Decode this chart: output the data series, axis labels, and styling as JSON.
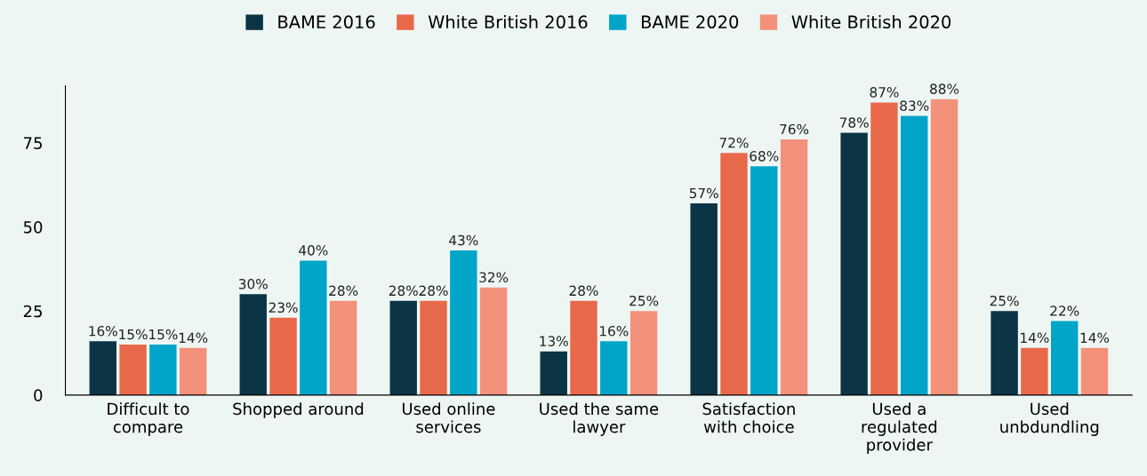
{
  "chart_data": {
    "type": "bar",
    "categories": [
      "Difficult to\ncompare",
      "Shopped around",
      "Used online\nservices",
      "Used the same\nlawyer",
      "Satisfaction\nwith choice",
      "Used a\nregulated\nprovider",
      "Used\nunbdundling"
    ],
    "series": [
      {
        "name": "BAME 2016",
        "color": "#0b3545",
        "values": [
          16,
          30,
          28,
          13,
          57,
          78,
          25
        ],
        "value_labels": [
          "16%",
          "30%",
          "28%",
          "13%",
          "57%",
          "78%",
          "25%"
        ]
      },
      {
        "name": "White British 2016",
        "color": "#e8694a",
        "values": [
          15,
          23,
          28,
          28,
          72,
          87,
          14
        ],
        "value_labels": [
          "15%",
          "23%",
          "28%",
          "28%",
          "72%",
          "87%",
          "14%"
        ]
      },
      {
        "name": "BAME 2020",
        "color": "#00a5c8",
        "values": [
          15,
          40,
          43,
          16,
          68,
          83,
          22
        ],
        "value_labels": [
          "15%",
          "40%",
          "43%",
          "16%",
          "68%",
          "83%",
          "22%"
        ]
      },
      {
        "name": "White British 2020",
        "color": "#f4917a",
        "values": [
          14,
          28,
          32,
          25,
          76,
          88,
          14
        ],
        "value_labels": [
          "14%",
          "28%",
          "32%",
          "25%",
          "76%",
          "88%",
          "14%"
        ]
      }
    ],
    "ylim": [
      0,
      92
    ],
    "yticks": [
      0,
      25,
      50,
      75
    ],
    "grid": false,
    "legend": "top"
  }
}
